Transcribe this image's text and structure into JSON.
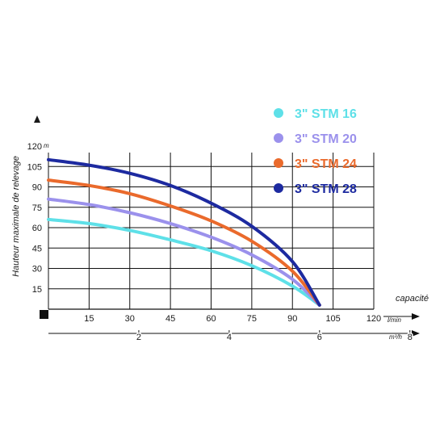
{
  "chart_data": {
    "type": "line",
    "ylabel": "Hauteur maximale de relevage",
    "y_unit": "m",
    "xlabel": "capacité",
    "x_unit_primary": "l/min",
    "x_unit_secondary": "m³/h",
    "ylim": [
      0,
      120
    ],
    "xlim": [
      0,
      120
    ],
    "y_ticks": [
      "15",
      "30",
      "45",
      "60",
      "75",
      "90",
      "105",
      "120"
    ],
    "x_ticks": [
      "15",
      "30",
      "45",
      "60",
      "75",
      "90",
      "105",
      "120"
    ],
    "x2_ticks": [
      "2",
      "4",
      "6",
      "8"
    ],
    "grid": true,
    "legend_position": "top-right",
    "series": [
      {
        "name": "3\" STM 16",
        "color": "#5ee0e8",
        "x": [
          0,
          15,
          30,
          45,
          60,
          75,
          90,
          100
        ],
        "y": [
          66,
          63,
          58,
          51,
          43,
          32,
          17,
          3
        ]
      },
      {
        "name": "3\" STM 20",
        "color": "#9b91ec",
        "x": [
          0,
          15,
          30,
          45,
          60,
          75,
          90,
          100
        ],
        "y": [
          81,
          77,
          71,
          63,
          53,
          40,
          22,
          3
        ]
      },
      {
        "name": "3\" STM 24",
        "color": "#ea6a2c",
        "x": [
          0,
          15,
          30,
          45,
          60,
          75,
          90,
          100
        ],
        "y": [
          95,
          91,
          85,
          76,
          65,
          50,
          28,
          3
        ]
      },
      {
        "name": "3\" STM 28",
        "color": "#1d2aa0",
        "x": [
          0,
          15,
          30,
          45,
          60,
          75,
          90,
          100
        ],
        "y": [
          110,
          106,
          100,
          91,
          78,
          61,
          35,
          3
        ]
      }
    ]
  }
}
